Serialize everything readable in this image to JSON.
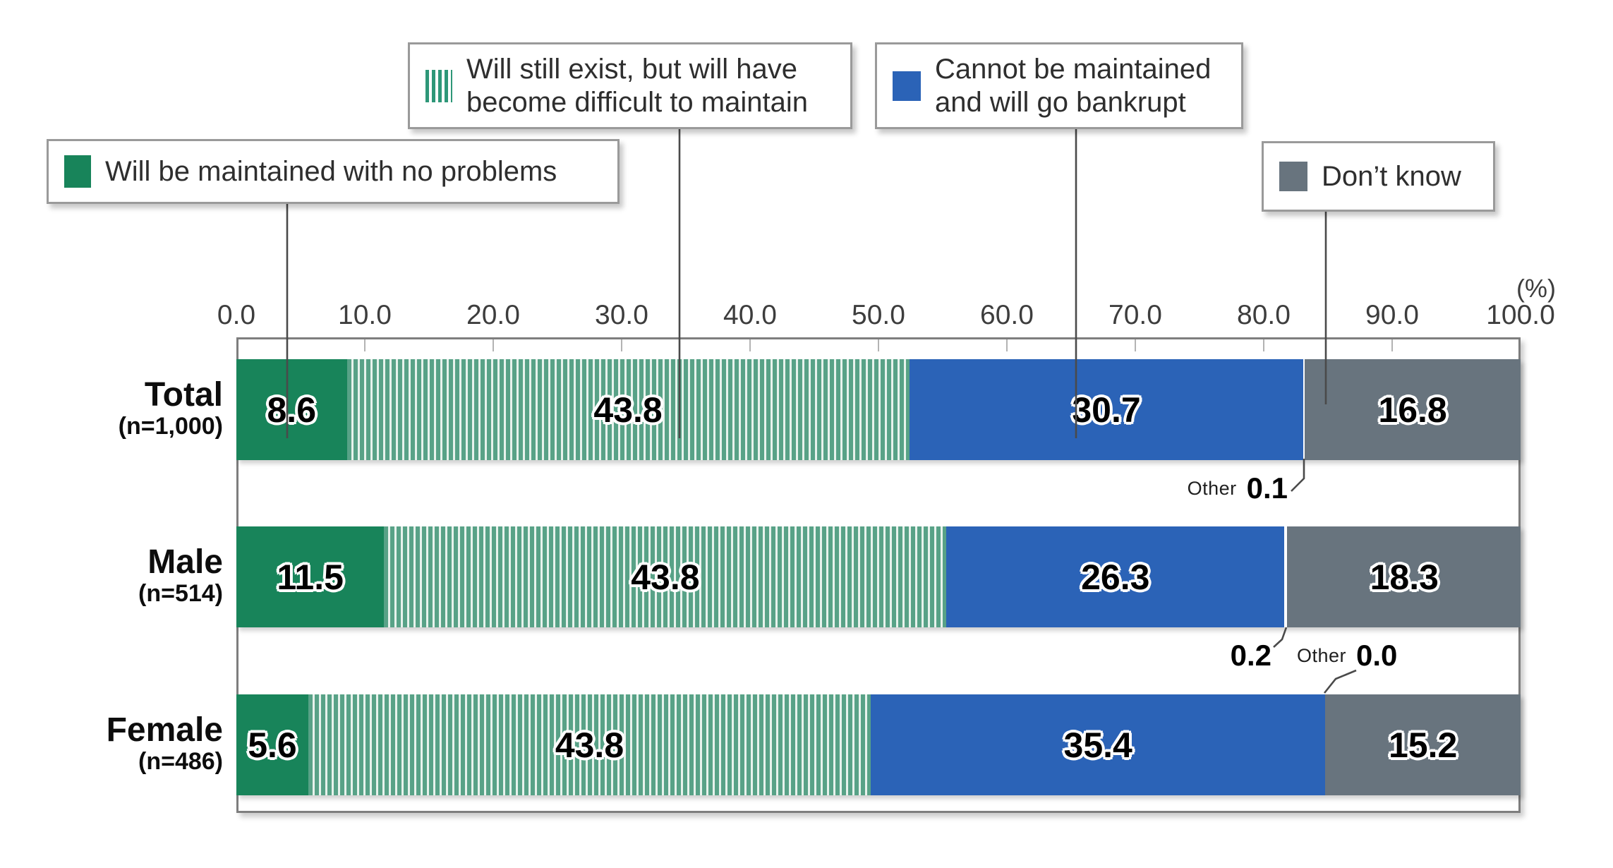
{
  "chart_data": {
    "type": "bar",
    "orientation": "horizontal-stacked",
    "unit_label": "(%)",
    "axis": {
      "min": 0,
      "max": 100,
      "step": 10,
      "tick_labels": [
        "0.0",
        "10.0",
        "20.0",
        "30.0",
        "40.0",
        "50.0",
        "60.0",
        "70.0",
        "80.0",
        "90.0",
        "100.0"
      ]
    },
    "bar_stripe_fg": "#58A287",
    "bar_stripe_bg": "#E7F2EC",
    "series": [
      {
        "key": "no_problems",
        "name": "Will be maintained with no problems",
        "color": "#18845A",
        "pattern": "solid"
      },
      {
        "key": "difficult",
        "name": "Will still exist, but will have become difficult to maintain",
        "color": "#2E9778",
        "pattern": "striped"
      },
      {
        "key": "bankrupt",
        "name": "Cannot be maintained and will go bankrupt",
        "color": "#2B63B7",
        "pattern": "solid"
      },
      {
        "key": "other",
        "name": "Other",
        "color": null,
        "pattern": "none"
      },
      {
        "key": "dont_know",
        "name": "Don’t know",
        "color": "#68747E",
        "pattern": "solid"
      }
    ],
    "rows": [
      {
        "label": "Total",
        "n_label": "(n=1,000)",
        "values": {
          "no_problems": 8.6,
          "difficult": 43.8,
          "bankrupt": 30.7,
          "other": 0.1,
          "dont_know": 16.8
        }
      },
      {
        "label": "Male",
        "n_label": "(n=514)",
        "values": {
          "no_problems": 11.5,
          "difficult": 43.8,
          "bankrupt": 26.3,
          "other": 0.2,
          "dont_know": 18.3
        }
      },
      {
        "label": "Female",
        "n_label": "(n=486)",
        "values": {
          "no_problems": 5.6,
          "difficult": 43.8,
          "bankrupt": 35.4,
          "other": 0.0,
          "dont_know": 15.2
        }
      }
    ]
  },
  "legend": {
    "no_problems_label": "Will be maintained with no problems",
    "difficult_label": "Will still exist, but will have\nbecome difficult to maintain",
    "bankrupt_label": "Cannot be maintained\nand will go bankrupt",
    "dont_know_label": "Don’t know"
  },
  "callouts": {
    "other_label": "Other",
    "total_other_value": "0.1",
    "male_other_value": "0.2",
    "female_other_value": "0.0"
  }
}
